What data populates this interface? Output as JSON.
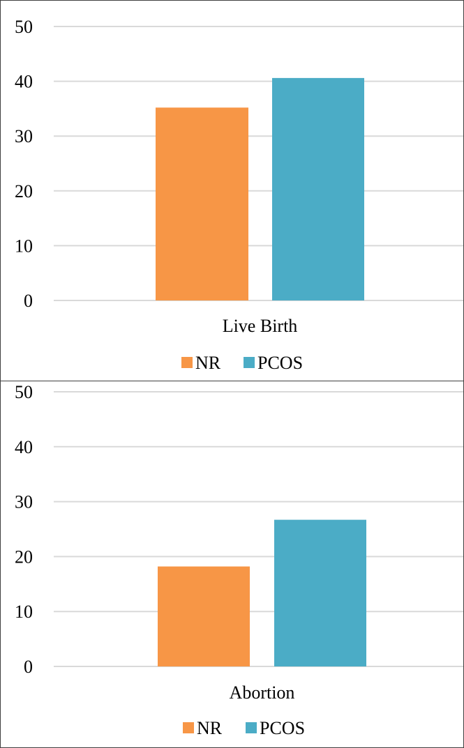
{
  "chart_data": [
    {
      "type": "bar",
      "categories": [
        "Live Birth"
      ],
      "series": [
        {
          "name": "NR",
          "values": [
            35.2
          ]
        },
        {
          "name": "PCOS",
          "values": [
            40.6
          ]
        }
      ],
      "ylim": [
        0,
        50
      ],
      "yticks": [
        "0",
        "10",
        "20",
        "30",
        "40",
        "50"
      ],
      "grid": true,
      "legend": "bottom"
    },
    {
      "type": "bar",
      "categories": [
        "Abortion"
      ],
      "series": [
        {
          "name": "NR",
          "values": [
            18.2
          ]
        },
        {
          "name": "PCOS",
          "values": [
            26.7
          ]
        }
      ],
      "ylim": [
        0,
        50
      ],
      "yticks": [
        "0",
        "10",
        "20",
        "30",
        "40",
        "50"
      ],
      "grid": true,
      "legend": "bottom"
    }
  ],
  "colors": {
    "NR": "#f79646",
    "PCOS": "#4bacc6",
    "grid": "#d9d9d9"
  }
}
